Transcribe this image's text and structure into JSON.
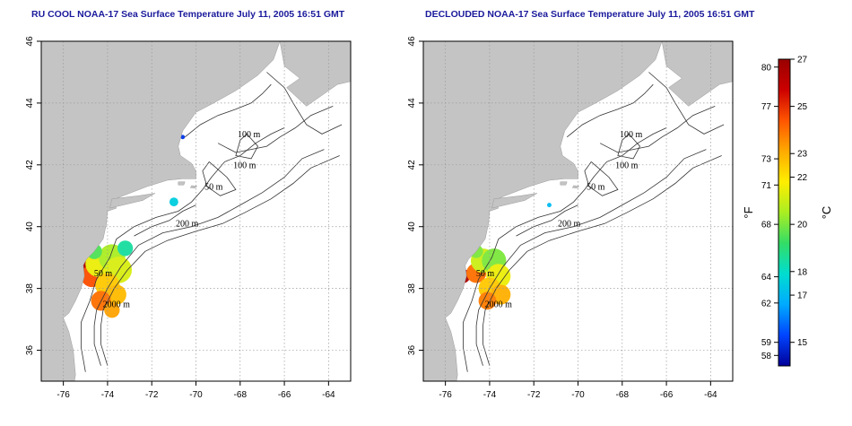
{
  "maps": [
    {
      "id": "left",
      "title": "RU COOL NOAA-17 Sea Surface Temperature July 11, 2005 16:51 GMT",
      "variant": "raw"
    },
    {
      "id": "right",
      "title": "DECLOUDED NOAA-17 Sea Surface Temperature July 11, 2005 16:51 GMT",
      "variant": "declouded"
    }
  ],
  "axes": {
    "x_ticks": [
      "-76",
      "-74",
      "-72",
      "-70",
      "-68",
      "-66",
      "-64"
    ],
    "x_values": [
      -76,
      -74,
      -72,
      -70,
      -68,
      -66,
      -64
    ],
    "y_ticks": [
      "36",
      "38",
      "40",
      "42",
      "44",
      "46"
    ],
    "y_values": [
      36,
      38,
      40,
      42,
      44,
      46
    ],
    "lon_range": [
      -77,
      -63
    ],
    "lat_range": [
      35,
      46
    ],
    "grid": "dotted"
  },
  "contour_labels": [
    {
      "text": "100 m",
      "lon": -67.6,
      "lat": 42.9
    },
    {
      "text": "100 m",
      "lon": -67.8,
      "lat": 41.9
    },
    {
      "text": "50 m",
      "lon": -69.2,
      "lat": 41.2
    },
    {
      "text": "200 m",
      "lon": -70.4,
      "lat": 40.0
    },
    {
      "text": "50 m",
      "lon": -74.2,
      "lat": 38.4
    },
    {
      "text": "2000 m",
      "lon": -73.6,
      "lat": 37.4
    }
  ],
  "colorbar": {
    "fahrenheit_label": "°F",
    "celsius_label": "°C",
    "fahrenheit_ticks": [
      "80",
      "77",
      "73",
      "71",
      "68",
      "64",
      "62",
      "59",
      "58"
    ],
    "celsius_ticks": [
      "27",
      "25",
      "23",
      "22",
      "20",
      "18",
      "17",
      "15"
    ],
    "celsius_values": [
      27,
      25,
      23,
      22,
      20,
      18,
      17,
      15
    ],
    "range_celsius": [
      14,
      27
    ],
    "colors": [
      "#000099",
      "#0044ff",
      "#00aaff",
      "#00ddd0",
      "#33dd66",
      "#aaee22",
      "#ffee00",
      "#ffaa00",
      "#ff5500",
      "#cc0000",
      "#990000"
    ]
  },
  "colors": {
    "land": "#c4c4c4",
    "ocean": "#ffffff",
    "grid": "#9a9a9a",
    "title": "#1a1a9c"
  }
}
